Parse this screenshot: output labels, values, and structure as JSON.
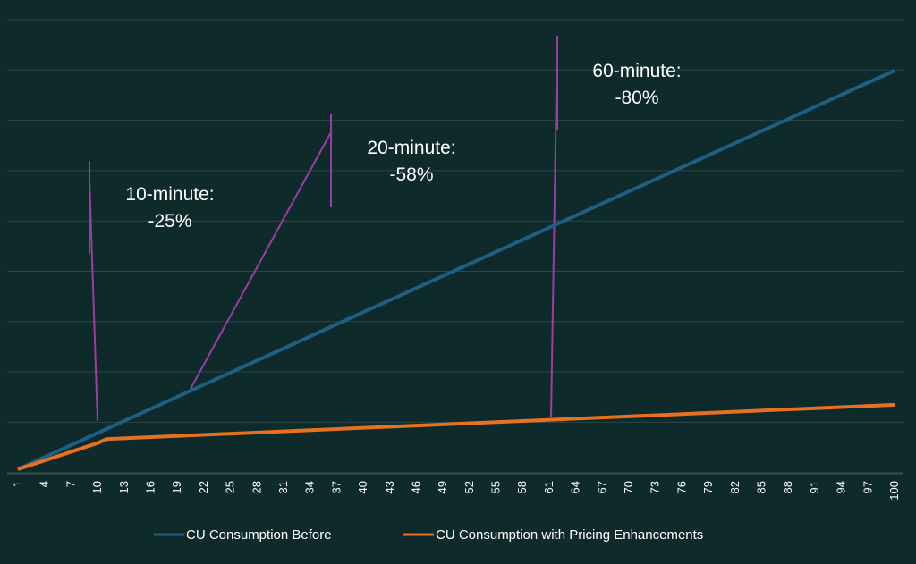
{
  "chart_data": {
    "type": "line",
    "x_range": [
      1,
      100
    ],
    "x_tick_labels": [
      "1",
      "4",
      "7",
      "10",
      "13",
      "16",
      "19",
      "22",
      "25",
      "28",
      "31",
      "34",
      "37",
      "40",
      "43",
      "46",
      "49",
      "52",
      "55",
      "58",
      "61",
      "64",
      "67",
      "70",
      "73",
      "76",
      "79",
      "82",
      "85",
      "88",
      "91",
      "94",
      "97",
      "100"
    ],
    "grid": "horizontal",
    "legend_position": "bottom",
    "series": [
      {
        "name": "CU Consumption Before",
        "color": "#1f5f85",
        "x": [
          1,
          100
        ],
        "y": [
          1,
          100
        ]
      },
      {
        "name": "CU Consumption with Pricing Enhancements",
        "color": "#e8711e",
        "x": [
          1,
          10,
          11,
          100
        ],
        "y": [
          1,
          7.5,
          8.5,
          17
        ]
      }
    ],
    "annotations": [
      {
        "line1": "10-minute:",
        "line2": "-25%"
      },
      {
        "line1": "20-minute:",
        "line2": "-58%"
      },
      {
        "line1": "60-minute:",
        "line2": "-80%"
      }
    ],
    "annotation_line_color": "#a23aa6"
  }
}
